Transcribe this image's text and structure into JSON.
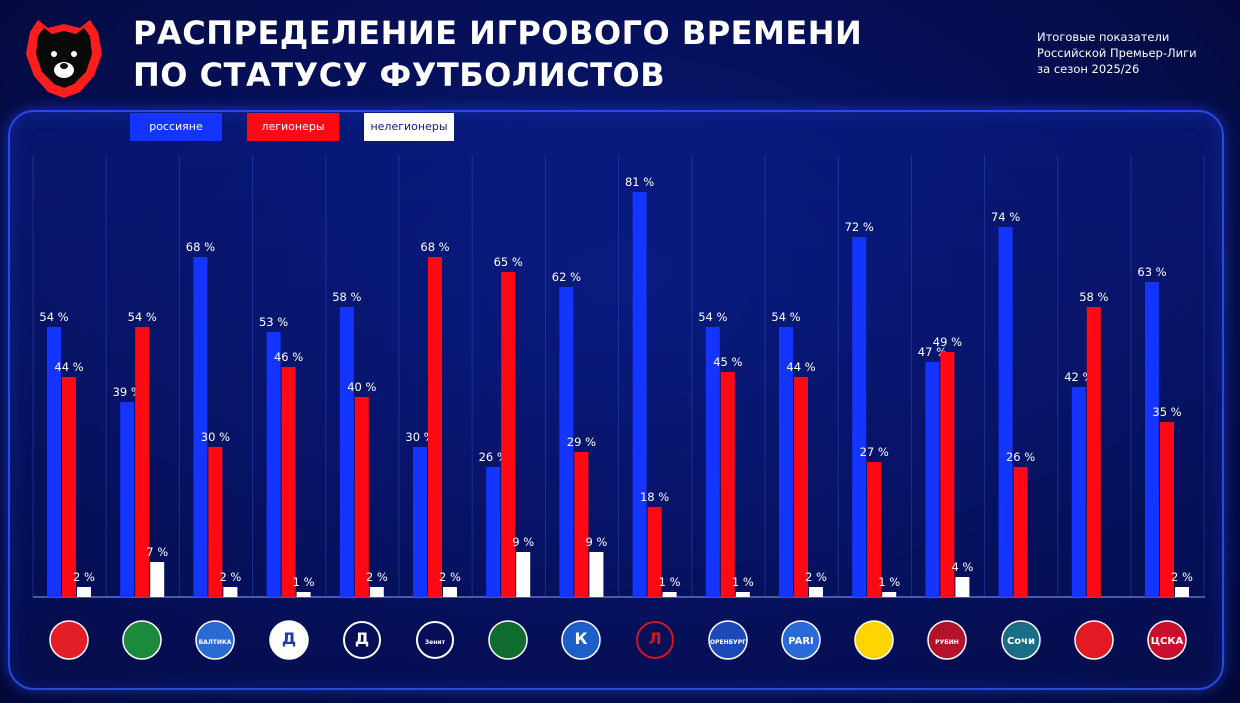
{
  "header": {
    "title_line1": "РАСПРЕДЕЛЕНИЕ ИГРОВОГО ВРЕМЕНИ",
    "title_line2": "ПО СТАТУСУ ФУТБОЛИСТОВ",
    "subtitle_line1": "Итоговые показатели",
    "subtitle_line2": "Российской Премьер-Лиги",
    "subtitle_line3": "за сезон 2025/26"
  },
  "colors": {
    "russians": "#1434ff",
    "legionnaires": "#ff0a14",
    "non_legionnaires": "#ffffff"
  },
  "club_logos": [
    {
      "icon": "akron-logo",
      "text": "",
      "bg": "#e41e26",
      "fg": "#ffffff"
    },
    {
      "icon": "akhmat-logo",
      "text": "",
      "bg": "#1b8a3c",
      "fg": "#ffffff"
    },
    {
      "icon": "baltika-logo",
      "text": "БАЛТИКА",
      "bg": "#2a6bd1",
      "fg": "#ffffff"
    },
    {
      "icon": "dynamo-mkh-logo",
      "text": "Д",
      "bg": "#ffffff",
      "fg": "#1d3da8"
    },
    {
      "icon": "dynamo-moscow-logo",
      "text": "Д",
      "bg": "none",
      "fg": "#ffffff"
    },
    {
      "icon": "zenit-logo",
      "text": "Зенит",
      "bg": "none",
      "fg": "#ffffff"
    },
    {
      "icon": "krasnodar-logo",
      "text": "",
      "bg": "#0f6b2e",
      "fg": "#ffffff"
    },
    {
      "icon": "krylia-sovetov-logo",
      "text": "К",
      "bg": "#1d5fc8",
      "fg": "#ffffff"
    },
    {
      "icon": "lokomotiv-logo",
      "text": "Л",
      "bg": "none",
      "fg": "#d8141f"
    },
    {
      "icon": "orenburg-logo",
      "text": "ОРЕНБУРГ",
      "bg": "#1d49b8",
      "fg": "#ffffff"
    },
    {
      "icon": "pari-nn-logo",
      "text": "PARI",
      "bg": "#2a6ad8",
      "fg": "#ffffff"
    },
    {
      "icon": "rostov-logo",
      "text": "",
      "bg": "#ffd400",
      "fg": "#1a3b9c"
    },
    {
      "icon": "rubin-logo",
      "text": "РУБИН",
      "bg": "#b3122a",
      "fg": "#ffffff"
    },
    {
      "icon": "sochi-logo",
      "text": "Сочи",
      "bg": "#1a6d87",
      "fg": "#ffffff"
    },
    {
      "icon": "spartak-logo",
      "text": "",
      "bg": "#e11a24",
      "fg": "#ffffff"
    },
    {
      "icon": "cska-logo",
      "text": "ЦСКА",
      "bg": "#c8102e",
      "fg": "#ffffff"
    }
  ],
  "chart_data": {
    "type": "bar",
    "title": "РАСПРЕДЕЛЕНИЕ ИГРОВОГО ВРЕМЕНИ ПО СТАТУСУ ФУТБОЛИСТОВ",
    "xlabel": "",
    "ylabel": "",
    "ylim": [
      0,
      90
    ],
    "value_suffix": " %",
    "legend_position": "top-left",
    "grid": false,
    "categories": [
      "",
      "",
      "",
      "",
      "",
      "",
      "",
      "",
      "",
      "",
      "",
      "",
      "",
      "",
      "",
      ""
    ],
    "series": [
      {
        "name": "россияне",
        "color": "#1434ff",
        "values": [
          54,
          39,
          68,
          53,
          58,
          30,
          26,
          62,
          81,
          54,
          54,
          72,
          47,
          74,
          42,
          63
        ]
      },
      {
        "name": "легионеры",
        "color": "#ff0a14",
        "values": [
          44,
          54,
          30,
          46,
          40,
          68,
          65,
          29,
          18,
          45,
          44,
          27,
          49,
          26,
          58,
          35
        ]
      },
      {
        "name": "нелегионеры",
        "color": "#ffffff",
        "values": [
          2,
          7,
          2,
          1,
          2,
          2,
          9,
          9,
          1,
          1,
          2,
          1,
          4,
          null,
          null,
          2
        ]
      }
    ]
  }
}
